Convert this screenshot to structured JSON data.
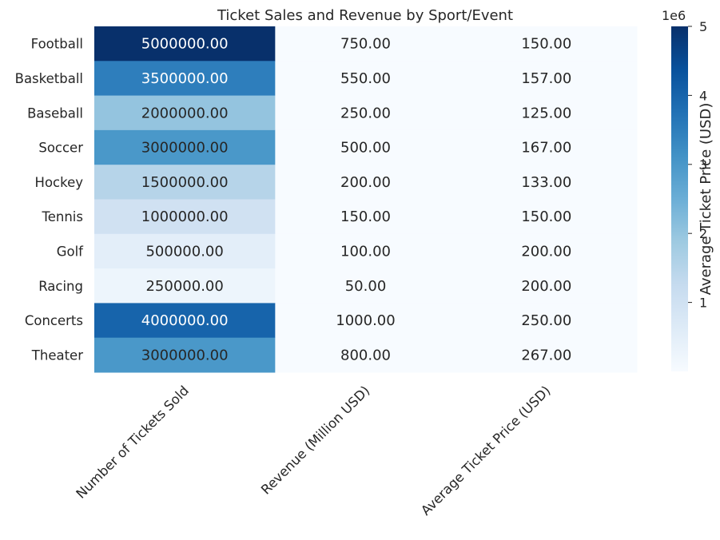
{
  "chart_data": {
    "type": "heatmap",
    "title": "Ticket Sales and Revenue by Sport/Event",
    "rows": [
      "Football",
      "Basketball",
      "Baseball",
      "Soccer",
      "Hockey",
      "Tennis",
      "Golf",
      "Racing",
      "Concerts",
      "Theater"
    ],
    "columns": [
      "Number of Tickets Sold",
      "Revenue (Million USD)",
      "Average Ticket Price (USD)"
    ],
    "values": [
      [
        5000000,
        750,
        150
      ],
      [
        3500000,
        550,
        157
      ],
      [
        2000000,
        250,
        125
      ],
      [
        3000000,
        500,
        167
      ],
      [
        1500000,
        200,
        133
      ],
      [
        1000000,
        150,
        150
      ],
      [
        500000,
        100,
        200
      ],
      [
        250000,
        50,
        200
      ],
      [
        4000000,
        1000,
        250
      ],
      [
        3000000,
        800,
        267
      ]
    ],
    "cell_labels": [
      [
        "5000000.00",
        "750.00",
        "150.00"
      ],
      [
        "3500000.00",
        "550.00",
        "157.00"
      ],
      [
        "2000000.00",
        "250.00",
        "125.00"
      ],
      [
        "3000000.00",
        "500.00",
        "167.00"
      ],
      [
        "1500000.00",
        "200.00",
        "133.00"
      ],
      [
        "1000000.00",
        "150.00",
        "150.00"
      ],
      [
        "500000.00",
        "100.00",
        "200.00"
      ],
      [
        "250000.00",
        "50.00",
        "200.00"
      ],
      [
        "4000000.00",
        "1000.00",
        "250.00"
      ],
      [
        "3000000.00",
        "800.00",
        "267.00"
      ]
    ],
    "colormap": "Blues",
    "vmin": 0,
    "vmax": 5000000,
    "colorbar": {
      "label": "Average Ticket Price (USD)",
      "offset_text": "1e6",
      "ticks": [
        1,
        2,
        3,
        4,
        5
      ],
      "tick_labels": [
        "1",
        "2",
        "3",
        "4",
        "5"
      ]
    }
  }
}
